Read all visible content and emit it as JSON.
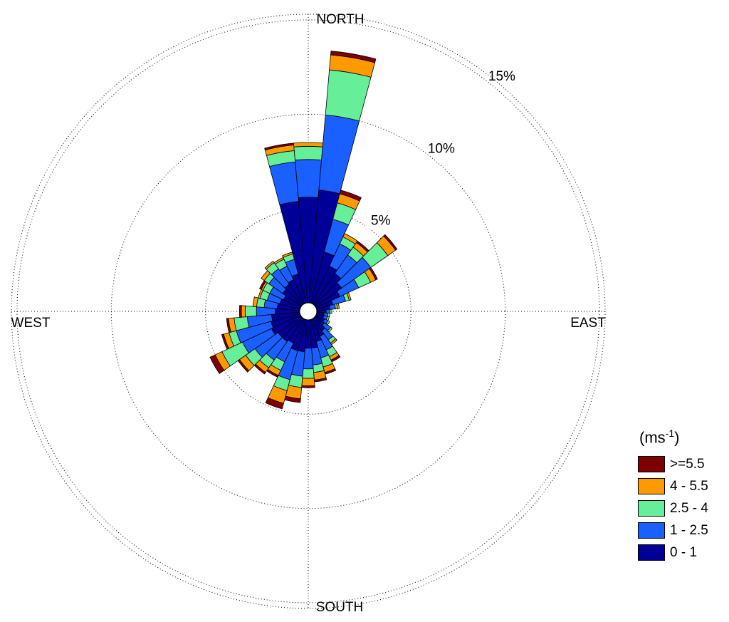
{
  "chart_data": {
    "type": "wind-rose",
    "direction_labels": {
      "north": "NORTH",
      "east": "EAST",
      "south": "SOUTH",
      "west": "WEST"
    },
    "radial_axis": {
      "unit": "%",
      "rings": [
        5,
        10,
        15
      ],
      "ring_labels": [
        "5%",
        "10%",
        "15%"
      ],
      "max": 15.3
    },
    "legend": {
      "title": "(ms",
      "title_superscript": "-1",
      "title_suffix": ")",
      "placement": "bottom-right",
      "entries": [
        {
          "label": ">=5.5",
          "color": "#7f0000"
        },
        {
          "label": "4 - 5.5",
          "color": "#ff9900"
        },
        {
          "label": "2.5 - 4",
          "color": "#66ee99"
        },
        {
          "label": "1 - 2.5",
          "color": "#1a5fff"
        },
        {
          "label": "0 - 1",
          "color": "#000099"
        }
      ]
    },
    "speed_bins": [
      "0 - 1",
      "1 - 2.5",
      "2.5 - 4",
      "4 - 5.5",
      ">=5.5"
    ],
    "colors": [
      "#000099",
      "#1a5fff",
      "#66ee99",
      "#ff9900",
      "#7f0000"
    ],
    "sector_width_deg": 10,
    "sectors": [
      {
        "dir": 0,
        "cum": [
          5.6,
          7.6,
          8.3,
          8.5,
          8.5
        ]
      },
      {
        "dir": 10,
        "cum": [
          6.0,
          10.0,
          12.4,
          13.2,
          13.4
        ]
      },
      {
        "dir": 20,
        "cum": [
          2.8,
          4.6,
          5.5,
          6.0,
          6.2
        ]
      },
      {
        "dir": 30,
        "cum": [
          2.2,
          3.5,
          3.9,
          4.1,
          4.1
        ]
      },
      {
        "dir": 40,
        "cum": [
          2.0,
          3.2,
          3.7,
          4.0,
          4.1
        ]
      },
      {
        "dir": 50,
        "cum": [
          1.7,
          3.6,
          4.7,
          5.2,
          5.3
        ]
      },
      {
        "dir": 60,
        "cum": [
          1.4,
          2.5,
          3.2,
          3.5,
          3.6
        ]
      },
      {
        "dir": 70,
        "cum": [
          0.9,
          1.6,
          1.8,
          1.9,
          1.9
        ]
      },
      {
        "dir": 80,
        "cum": [
          0.7,
          1.0,
          1.1,
          1.2,
          1.2
        ]
      },
      {
        "dir": 90,
        "cum": [
          0.5,
          0.7,
          0.8,
          0.8,
          0.8
        ]
      },
      {
        "dir": 100,
        "cum": [
          0.4,
          0.6,
          0.7,
          0.7,
          0.7
        ]
      },
      {
        "dir": 110,
        "cum": [
          0.4,
          0.6,
          0.7,
          0.7,
          0.7
        ]
      },
      {
        "dir": 120,
        "cum": [
          0.5,
          0.7,
          0.8,
          0.8,
          0.8
        ]
      },
      {
        "dir": 130,
        "cum": [
          0.6,
          1.0,
          1.1,
          1.1,
          1.1
        ]
      },
      {
        "dir": 140,
        "cum": [
          0.8,
          1.4,
          1.6,
          1.7,
          1.7
        ]
      },
      {
        "dir": 150,
        "cum": [
          1.0,
          1.8,
          2.2,
          2.4,
          2.5
        ]
      },
      {
        "dir": 160,
        "cum": [
          1.2,
          2.1,
          2.6,
          2.9,
          3.0
        ]
      },
      {
        "dir": 170,
        "cum": [
          1.5,
          2.4,
          2.8,
          3.2,
          3.3
        ]
      },
      {
        "dir": 180,
        "cum": [
          1.5,
          2.6,
          3.1,
          3.5,
          3.6
        ]
      },
      {
        "dir": 190,
        "cum": [
          1.7,
          3.0,
          3.6,
          4.2,
          4.4
        ]
      },
      {
        "dir": 200,
        "cum": [
          1.7,
          3.3,
          3.9,
          4.6,
          4.9
        ]
      },
      {
        "dir": 210,
        "cum": [
          1.4,
          2.5,
          3.0,
          3.3,
          3.4
        ]
      },
      {
        "dir": 220,
        "cum": [
          1.5,
          2.7,
          3.2,
          3.5,
          3.6
        ]
      },
      {
        "dir": 230,
        "cum": [
          1.5,
          3.0,
          3.6,
          4.0,
          4.1
        ]
      },
      {
        "dir": 240,
        "cum": [
          1.7,
          3.4,
          4.6,
          5.0,
          5.3
        ]
      },
      {
        "dir": 250,
        "cum": [
          1.6,
          3.5,
          3.9,
          4.2,
          4.3
        ]
      },
      {
        "dir": 260,
        "cum": [
          1.5,
          2.8,
          3.5,
          3.8,
          3.9
        ]
      },
      {
        "dir": 270,
        "cum": [
          1.3,
          2.3,
          2.9,
          3.1,
          3.2
        ]
      },
      {
        "dir": 280,
        "cum": [
          1.2,
          1.9,
          2.3,
          2.5,
          2.5
        ]
      },
      {
        "dir": 290,
        "cum": [
          1.1,
          1.8,
          2.2,
          2.3,
          2.3
        ]
      },
      {
        "dir": 300,
        "cum": [
          1.0,
          1.8,
          2.2,
          2.3,
          2.4
        ]
      },
      {
        "dir": 310,
        "cum": [
          1.2,
          2.1,
          2.4,
          2.6,
          2.6
        ]
      },
      {
        "dir": 320,
        "cum": [
          1.3,
          2.3,
          2.7,
          2.8,
          2.8
        ]
      },
      {
        "dir": 330,
        "cum": [
          1.4,
          2.2,
          2.6,
          2.7,
          2.7
        ]
      },
      {
        "dir": 340,
        "cum": [
          1.6,
          2.4,
          2.7,
          2.8,
          2.8
        ]
      },
      {
        "dir": 350,
        "cum": [
          5.4,
          7.5,
          8.1,
          8.4,
          8.5
        ]
      }
    ]
  }
}
